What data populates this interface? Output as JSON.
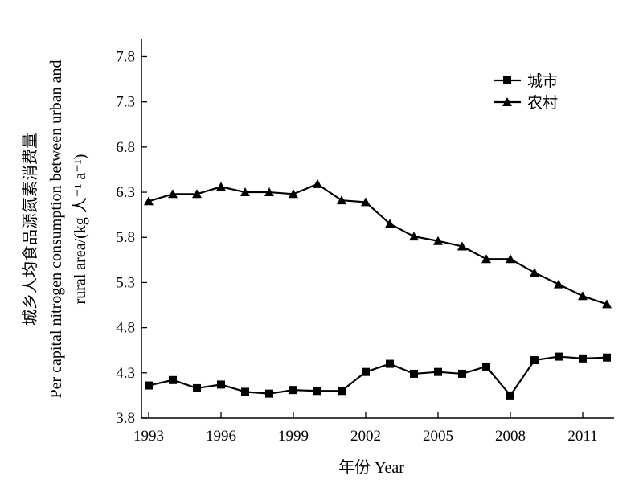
{
  "chart_data": {
    "type": "line",
    "x": [
      1993,
      1994,
      1995,
      1996,
      1997,
      1998,
      1999,
      2000,
      2001,
      2002,
      2003,
      2004,
      2005,
      2006,
      2007,
      2008,
      2009,
      2010,
      2011,
      2012
    ],
    "xticks": [
      "1993",
      "1996",
      "1999",
      "2002",
      "2005",
      "2008",
      "2011"
    ],
    "xtick_values": [
      1993,
      1996,
      1999,
      2002,
      2005,
      2008,
      2011
    ],
    "xlim": [
      1992.7,
      2012.3
    ],
    "yticks": [
      "3.8",
      "4.3",
      "4.8",
      "5.3",
      "5.8",
      "6.3",
      "6.8",
      "7.3",
      "7.8"
    ],
    "ytick_values": [
      3.8,
      4.3,
      4.8,
      5.3,
      5.8,
      6.3,
      6.8,
      7.3,
      7.8
    ],
    "ylim": [
      3.8,
      8.0
    ],
    "xlabel": "年份 Year",
    "ylabel_lines": [
      "城乡人均食品源氮素消费量",
      "Per capital nitrogen consumption between urban and",
      "rural area/(kg 人⁻¹ a⁻¹)"
    ],
    "legend_position": "top-right",
    "series": [
      {
        "name": "城市",
        "marker": "square",
        "values": [
          4.16,
          4.22,
          4.13,
          4.17,
          4.09,
          4.07,
          4.11,
          4.1,
          4.1,
          4.31,
          4.4,
          4.29,
          4.31,
          4.29,
          4.37,
          4.05,
          4.44,
          4.48,
          4.46,
          4.47
        ]
      },
      {
        "name": "农村",
        "marker": "triangle",
        "values": [
          6.2,
          6.28,
          6.28,
          6.36,
          6.3,
          6.3,
          6.28,
          6.39,
          6.21,
          6.19,
          5.95,
          5.81,
          5.76,
          5.7,
          5.56,
          5.56,
          5.41,
          5.28,
          5.15,
          5.06
        ]
      }
    ]
  }
}
